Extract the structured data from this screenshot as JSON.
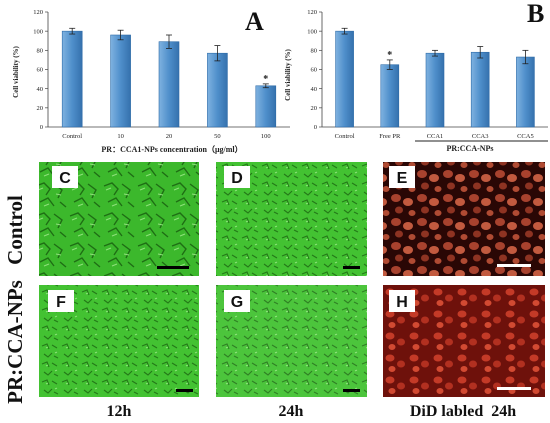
{
  "panels": {
    "A": "A",
    "B": "B",
    "C": "C",
    "D": "D",
    "E": "E",
    "F": "F",
    "G": "G",
    "H": "H"
  },
  "row_labels": [
    "Control",
    "PR:CCA-NPs"
  ],
  "column_labels": [
    "12h",
    "24h",
    "DiD labled  24h"
  ],
  "colors": {
    "bar_fill": "#4F8FCB",
    "bar_edge": "#2E6BA8",
    "phase_green": "#3FBF2F",
    "fluor_red": "#7A1A12"
  },
  "chart_data": [
    {
      "type": "bar",
      "panel": "A",
      "categories": [
        "Control",
        "10",
        "20",
        "50",
        "100"
      ],
      "values": [
        100,
        96,
        89,
        77,
        43
      ],
      "errors": [
        3,
        5,
        7,
        8,
        2
      ],
      "significance": [
        "",
        "",
        "",
        "",
        "*"
      ],
      "ylabel": "Cell viability (%)",
      "xlabel": "PR：CCA1-NPs concentration（μg/ml）",
      "yticks": [
        0,
        20,
        40,
        60,
        80,
        100,
        120
      ],
      "ylim": [
        0,
        120
      ]
    },
    {
      "type": "bar",
      "panel": "B",
      "categories": [
        "Control",
        "Free PR",
        "CCA1",
        "CCA3",
        "CCA5"
      ],
      "values": [
        100,
        65,
        77,
        78,
        73
      ],
      "errors": [
        3,
        5,
        3,
        6,
        7
      ],
      "significance": [
        "",
        "*",
        "",
        "",
        ""
      ],
      "ylabel": "Cell viability (%)",
      "group_label": "PR:CCA-NPs",
      "yticks": [
        0,
        20,
        40,
        60,
        80,
        100,
        120
      ],
      "ylim": [
        0,
        120
      ]
    }
  ]
}
